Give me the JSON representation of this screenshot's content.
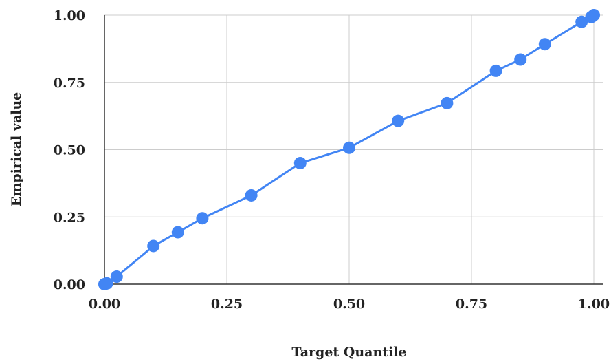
{
  "chart_data": {
    "type": "line",
    "title": "",
    "xlabel": "Target Quantile",
    "ylabel": "Empirical value",
    "xlim": [
      0,
      1
    ],
    "ylim": [
      0,
      1
    ],
    "grid": true,
    "legend": "none",
    "x_ticks": [
      "0.00",
      "0.25",
      "0.50",
      "0.75",
      "1.00"
    ],
    "y_ticks": [
      "0.00",
      "0.25",
      "0.50",
      "0.75",
      "1.00"
    ],
    "colors": {
      "series": "#4285f4",
      "grid": "#cccccc",
      "axis": "#333333"
    },
    "series": [
      {
        "x": [
          0.0,
          0.005,
          0.025,
          0.1,
          0.15,
          0.2,
          0.3,
          0.4,
          0.5,
          0.6,
          0.7,
          0.8,
          0.85,
          0.9,
          0.975,
          0.995,
          1.0
        ],
        "y": [
          0.0,
          0.003,
          0.028,
          0.142,
          0.193,
          0.245,
          0.33,
          0.45,
          0.507,
          0.607,
          0.673,
          0.793,
          0.835,
          0.892,
          0.975,
          0.993,
          1.0
        ]
      }
    ]
  }
}
